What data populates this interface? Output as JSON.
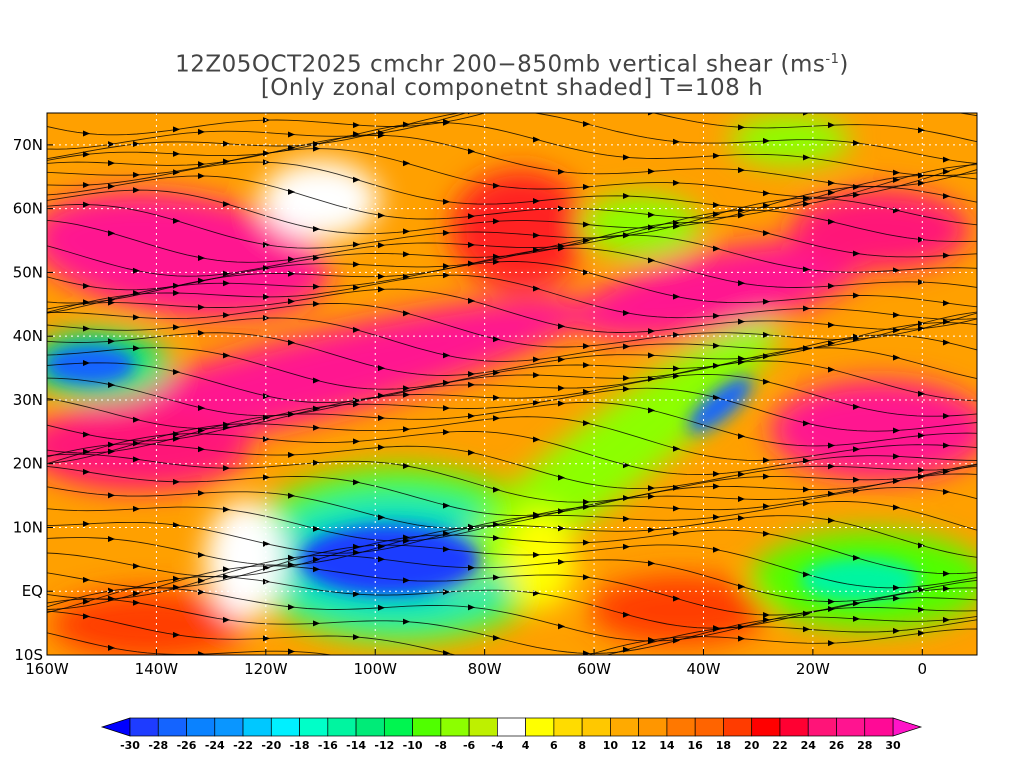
{
  "title": {
    "line1": "12Z05OCT2025 cmchr 200−850mb vertical shear (ms",
    "unit_sup": "-1",
    "line1_end": ")",
    "line2": "[Only zonal componetnt shaded] T=108 h"
  },
  "map": {
    "lon_range": [
      -160,
      10
    ],
    "lat_range": [
      -10,
      75
    ],
    "lon_ticks": [
      {
        "value": -160,
        "label": "160W"
      },
      {
        "value": -140,
        "label": "140W"
      },
      {
        "value": -120,
        "label": "120W"
      },
      {
        "value": -100,
        "label": "100W"
      },
      {
        "value": -80,
        "label": "80W"
      },
      {
        "value": -60,
        "label": "60W"
      },
      {
        "value": -40,
        "label": "40W"
      },
      {
        "value": -20,
        "label": "20W"
      },
      {
        "value": 0,
        "label": "0"
      }
    ],
    "lat_ticks": [
      {
        "value": -10,
        "label": "10S"
      },
      {
        "value": 0,
        "label": "EQ"
      },
      {
        "value": 10,
        "label": "10N"
      },
      {
        "value": 20,
        "label": "20N"
      },
      {
        "value": 30,
        "label": "30N"
      },
      {
        "value": 40,
        "label": "40N"
      },
      {
        "value": 50,
        "label": "50N"
      },
      {
        "value": 60,
        "label": "60N"
      },
      {
        "value": 70,
        "label": "70N"
      }
    ]
  },
  "colorbar": {
    "labels": [
      "-30",
      "-28",
      "-26",
      "-24",
      "-22",
      "-20",
      "-18",
      "-16",
      "-14",
      "-12",
      "-10",
      "-8",
      "-6",
      "-4",
      "4",
      "6",
      "8",
      "10",
      "12",
      "14",
      "16",
      "18",
      "20",
      "22",
      "24",
      "26",
      "28",
      "30"
    ],
    "low_color": "#0000ff",
    "high_color": "#ff14c8",
    "colors": [
      "#1e3cff",
      "#1464ff",
      "#0a82ff",
      "#0a96ff",
      "#00c8ff",
      "#00f0ff",
      "#00ffc8",
      "#00f5a0",
      "#00eb78",
      "#00f550",
      "#50ff00",
      "#8cff00",
      "#bef000",
      "#ffffff",
      "#ffff00",
      "#ffdc00",
      "#ffc800",
      "#ffaa00",
      "#ff9600",
      "#ff7800",
      "#ff6400",
      "#ff3c00",
      "#ff0000",
      "#ff0032",
      "#ff1478",
      "#ff1490",
      "#ff0a96"
    ]
  }
}
